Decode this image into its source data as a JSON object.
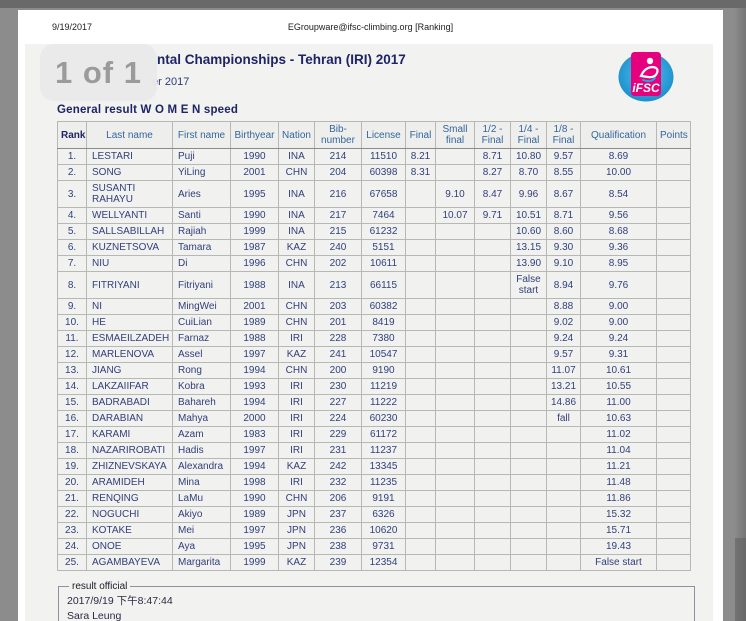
{
  "viewer": {
    "page_indicator": "1 of 1"
  },
  "page_header": {
    "date": "9/19/2017",
    "center_text": "EGroupware@ifsc-climbing.org [Ranking]"
  },
  "document": {
    "title_fragment": "ntal Championships - Tehran (IRI) 2017",
    "subtitle_fragment": "er 2017",
    "section_title": "General result W O M E N speed",
    "logo_text": "iFSC"
  },
  "table": {
    "headers": [
      "Rank",
      "Last name",
      "First name",
      "Birthyear",
      "Nation",
      "Bib-\nnumber",
      "License",
      "Final",
      "Small\nfinal",
      "1/2 -\nFinal",
      "1/4 -\nFinal",
      "1/8 -\nFinal",
      "Qualification",
      "Points"
    ],
    "rows": [
      [
        "1.",
        "LESTARI",
        "Puji",
        "1990",
        "INA",
        "214",
        "11510",
        "8.21",
        "",
        "8.71",
        "10.80",
        "9.57",
        "8.69",
        ""
      ],
      [
        "2.",
        "SONG",
        "YiLing",
        "2001",
        "CHN",
        "204",
        "60398",
        "8.31",
        "",
        "8.27",
        "8.70",
        "8.55",
        "10.00",
        ""
      ],
      [
        "3.",
        "SUSANTI RAHAYU",
        "Aries",
        "1995",
        "INA",
        "216",
        "67658",
        "",
        "9.10",
        "8.47",
        "9.96",
        "8.67",
        "8.54",
        ""
      ],
      [
        "4.",
        "WELLYANTI",
        "Santi",
        "1990",
        "INA",
        "217",
        "7464",
        "",
        "10.07",
        "9.71",
        "10.51",
        "8.71",
        "9.56",
        ""
      ],
      [
        "5.",
        "SALLSABILLAH",
        "Rajiah",
        "1999",
        "INA",
        "215",
        "61232",
        "",
        "",
        "",
        "10.60",
        "8.60",
        "8.68",
        ""
      ],
      [
        "6.",
        "KUZNETSOVA",
        "Tamara",
        "1987",
        "KAZ",
        "240",
        "5151",
        "",
        "",
        "",
        "13.15",
        "9.30",
        "9.36",
        ""
      ],
      [
        "7.",
        "NIU",
        "Di",
        "1996",
        "CHN",
        "202",
        "10611",
        "",
        "",
        "",
        "13.90",
        "9.10",
        "8.95",
        ""
      ],
      [
        "8.",
        "FITRIYANI",
        "Fitriyani",
        "1988",
        "INA",
        "213",
        "66115",
        "",
        "",
        "",
        "False start",
        "8.94",
        "9.76",
        ""
      ],
      [
        "9.",
        "NI",
        "MingWei",
        "2001",
        "CHN",
        "203",
        "60382",
        "",
        "",
        "",
        "",
        "8.88",
        "9.00",
        ""
      ],
      [
        "10.",
        "HE",
        "CuiLian",
        "1989",
        "CHN",
        "201",
        "8419",
        "",
        "",
        "",
        "",
        "9.02",
        "9.00",
        ""
      ],
      [
        "11.",
        "ESMAEILZADEH",
        "Farnaz",
        "1988",
        "IRI",
        "228",
        "7380",
        "",
        "",
        "",
        "",
        "9.24",
        "9.24",
        ""
      ],
      [
        "12.",
        "MARLENOVA",
        "Assel",
        "1997",
        "KAZ",
        "241",
        "10547",
        "",
        "",
        "",
        "",
        "9.57",
        "9.31",
        ""
      ],
      [
        "13.",
        "JIANG",
        "Rong",
        "1994",
        "CHN",
        "200",
        "9190",
        "",
        "",
        "",
        "",
        "11.07",
        "10.61",
        ""
      ],
      [
        "14.",
        "LAKZAIIFAR",
        "Kobra",
        "1993",
        "IRI",
        "230",
        "11219",
        "",
        "",
        "",
        "",
        "13.21",
        "10.55",
        ""
      ],
      [
        "15.",
        "BADRABADI",
        "Bahareh",
        "1994",
        "IRI",
        "227",
        "11222",
        "",
        "",
        "",
        "",
        "14.86",
        "11.00",
        ""
      ],
      [
        "16.",
        "DARABIAN",
        "Mahya",
        "2000",
        "IRI",
        "224",
        "60230",
        "",
        "",
        "",
        "",
        "fall",
        "10.63",
        ""
      ],
      [
        "17.",
        "KARAMI",
        "Azam",
        "1983",
        "IRI",
        "229",
        "61172",
        "",
        "",
        "",
        "",
        "",
        "11.02",
        ""
      ],
      [
        "18.",
        "NAZARIROBATI",
        "Hadis",
        "1997",
        "IRI",
        "231",
        "11237",
        "",
        "",
        "",
        "",
        "",
        "11.04",
        ""
      ],
      [
        "19.",
        "ZHIZNEVSKAYA",
        "Alexandra",
        "1994",
        "KAZ",
        "242",
        "13345",
        "",
        "",
        "",
        "",
        "",
        "11.21",
        ""
      ],
      [
        "20.",
        "ARAMIDEH",
        "Mina",
        "1998",
        "IRI",
        "232",
        "11235",
        "",
        "",
        "",
        "",
        "",
        "11.48",
        ""
      ],
      [
        "21.",
        "RENQING",
        "LaMu",
        "1990",
        "CHN",
        "206",
        "9191",
        "",
        "",
        "",
        "",
        "",
        "11.86",
        ""
      ],
      [
        "22.",
        "NOGUCHI",
        "Akiyo",
        "1989",
        "JPN",
        "237",
        "6326",
        "",
        "",
        "",
        "",
        "",
        "15.32",
        ""
      ],
      [
        "23.",
        "KOTAKE",
        "Mei",
        "1997",
        "JPN",
        "236",
        "10620",
        "",
        "",
        "",
        "",
        "",
        "15.71",
        ""
      ],
      [
        "24.",
        "ONOE",
        "Aya",
        "1995",
        "JPN",
        "238",
        "9731",
        "",
        "",
        "",
        "",
        "",
        "19.43",
        ""
      ],
      [
        "25.",
        "AGAMBAYEVA",
        "Margarita",
        "1999",
        "KAZ",
        "239",
        "12354",
        "",
        "",
        "",
        "",
        "",
        "False start",
        ""
      ]
    ]
  },
  "footer": {
    "legend": "result official",
    "timestamp": "2017/9/19 下午8:47:44",
    "signed_by": "Sara Leung"
  },
  "colors": {
    "viewer_bg": "#8c8c8c",
    "top_bar": "#696969",
    "content_bg": "#f2f2f0",
    "title_navy": "#1f2464",
    "cell_navy": "#32407c",
    "header_blue": "#33669c",
    "logo_pink": "#e6007e",
    "logo_blue": "#29a8e0"
  }
}
